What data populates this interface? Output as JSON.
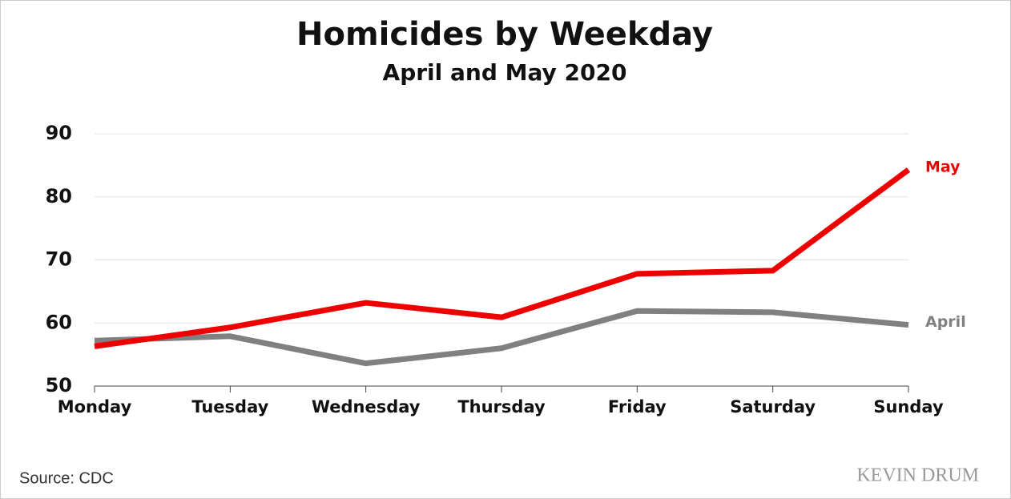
{
  "chart_data": {
    "type": "line",
    "title": "Homicides by Weekday",
    "subtitle": "April and May 2020",
    "categories": [
      "Monday",
      "Tuesday",
      "Wednesday",
      "Thursday",
      "Friday",
      "Saturday",
      "Sunday"
    ],
    "series": [
      {
        "name": "April",
        "color": "#808080",
        "values": [
          57.2,
          57.9,
          53.6,
          56.0,
          61.9,
          61.7,
          59.7
        ]
      },
      {
        "name": "May",
        "color": "#ee0000",
        "values": [
          56.3,
          59.3,
          63.2,
          60.9,
          67.8,
          68.3,
          84.3
        ]
      }
    ],
    "ylim": [
      50,
      90
    ],
    "yticks": [
      50,
      60,
      70,
      80,
      90
    ],
    "grid": true,
    "source": "Source:  CDC",
    "watermark": "KEVIN DRUM"
  }
}
